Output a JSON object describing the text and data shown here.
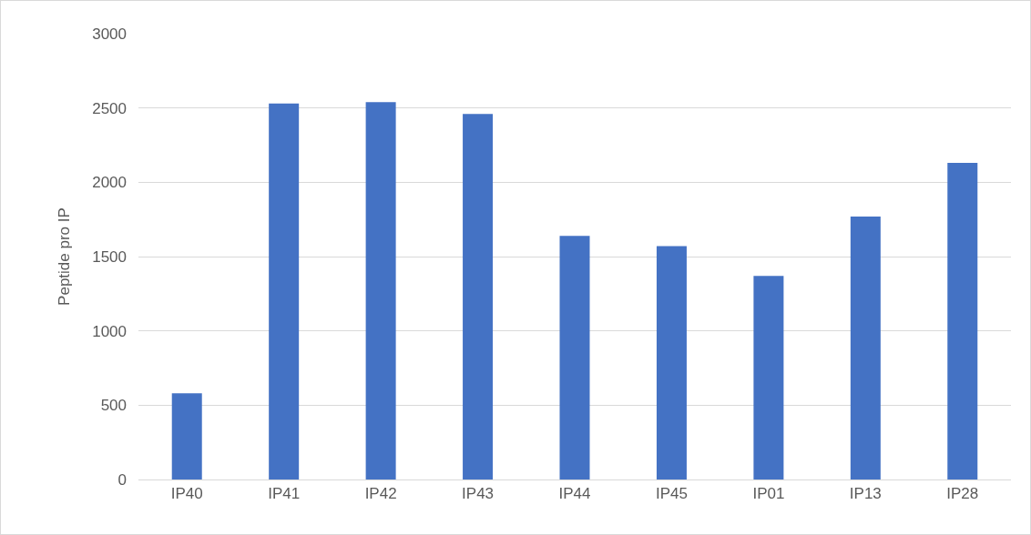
{
  "chart_data": {
    "type": "bar",
    "ylabel": "Peptide pro IP",
    "categories": [
      "IP40",
      "IP41",
      "IP42",
      "IP43",
      "IP44",
      "IP45",
      "IP01",
      "IP13",
      "IP28"
    ],
    "values": [
      580,
      2530,
      2540,
      2460,
      1640,
      1570,
      1370,
      1770,
      2130
    ],
    "color": "#4472c4",
    "ylim": [
      0,
      3000
    ],
    "yticks": [
      0,
      500,
      1000,
      1500,
      2000,
      2500,
      3000
    ],
    "grid": "y",
    "legend": false
  }
}
